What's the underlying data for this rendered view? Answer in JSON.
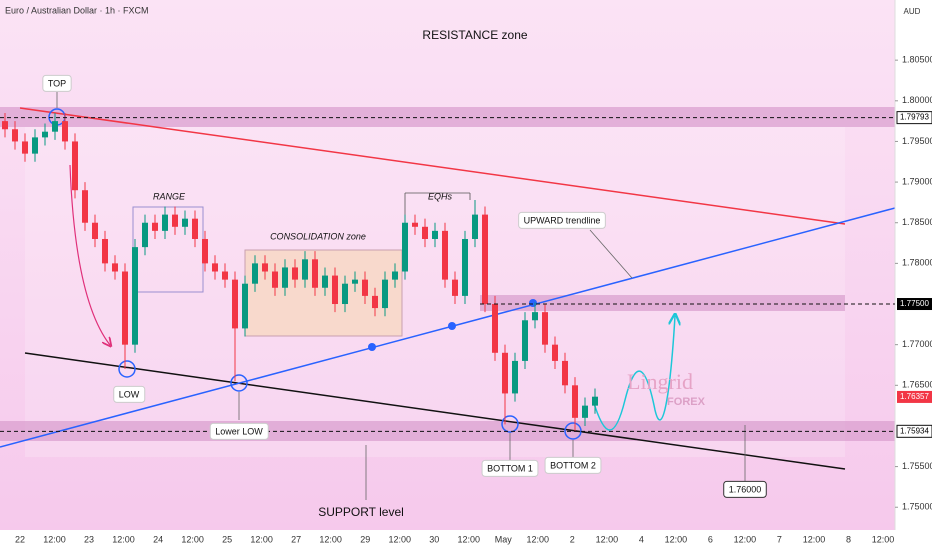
{
  "chart_data": {
    "type": "candlestick",
    "title": "Euro / Australian Dollar · 1h · FXCM",
    "currency": "AUD",
    "up_color": "#089981",
    "down_color": "#f23645",
    "open": [
      1.7975,
      1.7965,
      1.795,
      1.7935,
      1.7955,
      1.7962,
      1.7975,
      1.795,
      1.789,
      1.785,
      1.783,
      1.78,
      1.779,
      1.77,
      1.782,
      1.785,
      1.784,
      1.786,
      1.7845,
      1.7855,
      1.783,
      1.78,
      1.779,
      1.778,
      1.772,
      1.7775,
      1.78,
      1.779,
      1.777,
      1.7795,
      1.778,
      1.7805,
      1.777,
      1.7785,
      1.775,
      1.7775,
      1.778,
      1.776,
      1.7745,
      1.778,
      1.779,
      1.785,
      1.7845,
      1.783,
      1.784,
      1.778,
      1.776,
      1.783,
      1.786,
      1.775,
      1.769,
      1.764,
      1.768,
      1.773,
      1.774,
      1.77,
      1.768,
      1.765,
      1.761,
      1.7625
    ],
    "high": [
      1.7985,
      1.7975,
      1.796,
      1.7965,
      1.7972,
      1.7985,
      1.7985,
      1.796,
      1.79,
      1.786,
      1.784,
      1.781,
      1.78,
      1.783,
      1.786,
      1.786,
      1.787,
      1.787,
      1.7865,
      1.7865,
      1.784,
      1.781,
      1.78,
      1.779,
      1.7785,
      1.781,
      1.781,
      1.78,
      1.7805,
      1.7805,
      1.7815,
      1.7815,
      1.7795,
      1.7795,
      1.7785,
      1.779,
      1.779,
      1.777,
      1.779,
      1.78,
      1.786,
      1.786,
      1.7855,
      1.785,
      1.785,
      1.779,
      1.784,
      1.7878,
      1.787,
      1.776,
      1.77,
      1.769,
      1.774,
      1.7752,
      1.775,
      1.771,
      1.769,
      1.766,
      1.7635,
      1.7646
    ],
    "low": [
      1.7955,
      1.794,
      1.7925,
      1.7925,
      1.7945,
      1.7952,
      1.794,
      1.788,
      1.784,
      1.782,
      1.779,
      1.778,
      1.767,
      1.769,
      1.781,
      1.783,
      1.783,
      1.7835,
      1.7835,
      1.782,
      1.779,
      1.778,
      1.777,
      1.7655,
      1.771,
      1.7765,
      1.778,
      1.776,
      1.776,
      1.777,
      1.777,
      1.776,
      1.776,
      1.774,
      1.774,
      1.7765,
      1.775,
      1.7735,
      1.7735,
      1.777,
      1.778,
      1.7835,
      1.782,
      1.782,
      1.777,
      1.775,
      1.775,
      1.782,
      1.774,
      1.768,
      1.7602,
      1.763,
      1.767,
      1.772,
      1.769,
      1.767,
      1.764,
      1.7594,
      1.76,
      1.7615
    ],
    "close": [
      1.7965,
      1.795,
      1.7935,
      1.7955,
      1.7962,
      1.7975,
      1.795,
      1.789,
      1.785,
      1.783,
      1.78,
      1.779,
      1.77,
      1.782,
      1.785,
      1.784,
      1.786,
      1.7845,
      1.7855,
      1.783,
      1.78,
      1.779,
      1.778,
      1.772,
      1.7775,
      1.78,
      1.779,
      1.777,
      1.7795,
      1.778,
      1.7805,
      1.777,
      1.7785,
      1.775,
      1.7775,
      1.778,
      1.776,
      1.7745,
      1.778,
      1.779,
      1.785,
      1.7845,
      1.783,
      1.784,
      1.778,
      1.776,
      1.783,
      1.786,
      1.775,
      1.769,
      1.764,
      1.768,
      1.773,
      1.774,
      1.77,
      1.768,
      1.765,
      1.761,
      1.7625,
      1.7636
    ],
    "ylim": [
      1.7472,
      1.8124
    ],
    "yticks": [
      {
        "value": 1.75,
        "label": "1.75000"
      },
      {
        "value": 1.755,
        "label": "1.75500"
      },
      {
        "value": 1.765,
        "label": "1.76500"
      },
      {
        "value": 1.77,
        "label": "1.77000"
      },
      {
        "value": 1.78,
        "label": "1.78000"
      },
      {
        "value": 1.785,
        "label": "1.78500"
      },
      {
        "value": 1.79,
        "label": "1.79000"
      },
      {
        "value": 1.795,
        "label": "1.79500"
      },
      {
        "value": 1.8,
        "label": "1.80000"
      },
      {
        "value": 1.805,
        "label": "1.80500"
      }
    ],
    "time_labels": [
      "22",
      "12:00",
      "23",
      "12:00",
      "24",
      "12:00",
      "25",
      "12:00",
      "27",
      "12:00",
      "29",
      "12:00",
      "30",
      "12:00",
      "May",
      "12:00",
      "2",
      "12:00",
      "4",
      "12:00",
      "6",
      "12:00",
      "7",
      "12:00",
      "8",
      "12:00"
    ],
    "price_tags": [
      {
        "value": 1.79793,
        "label": "1.79793",
        "color": "#ffffff"
      },
      {
        "value": 1.775,
        "label": "1.77500",
        "color": "#000000"
      },
      {
        "value": 1.76357,
        "label": "1.76357",
        "color": "#f23645"
      },
      {
        "value": 1.75934,
        "label": "1.75934",
        "color": "#ffffff"
      }
    ],
    "annotations": [
      "RESISTANCE zone",
      "TOP",
      "RANGE",
      "CONSOLIDATION zone",
      "EQHs",
      "UPWARD trendline",
      "LOW",
      "Lower LOW",
      "BOTTOM 1",
      "BOTTOM 2",
      "SUPPORT level",
      "1.76000"
    ],
    "watermark": [
      "Lingrid",
      "FOREX"
    ]
  }
}
